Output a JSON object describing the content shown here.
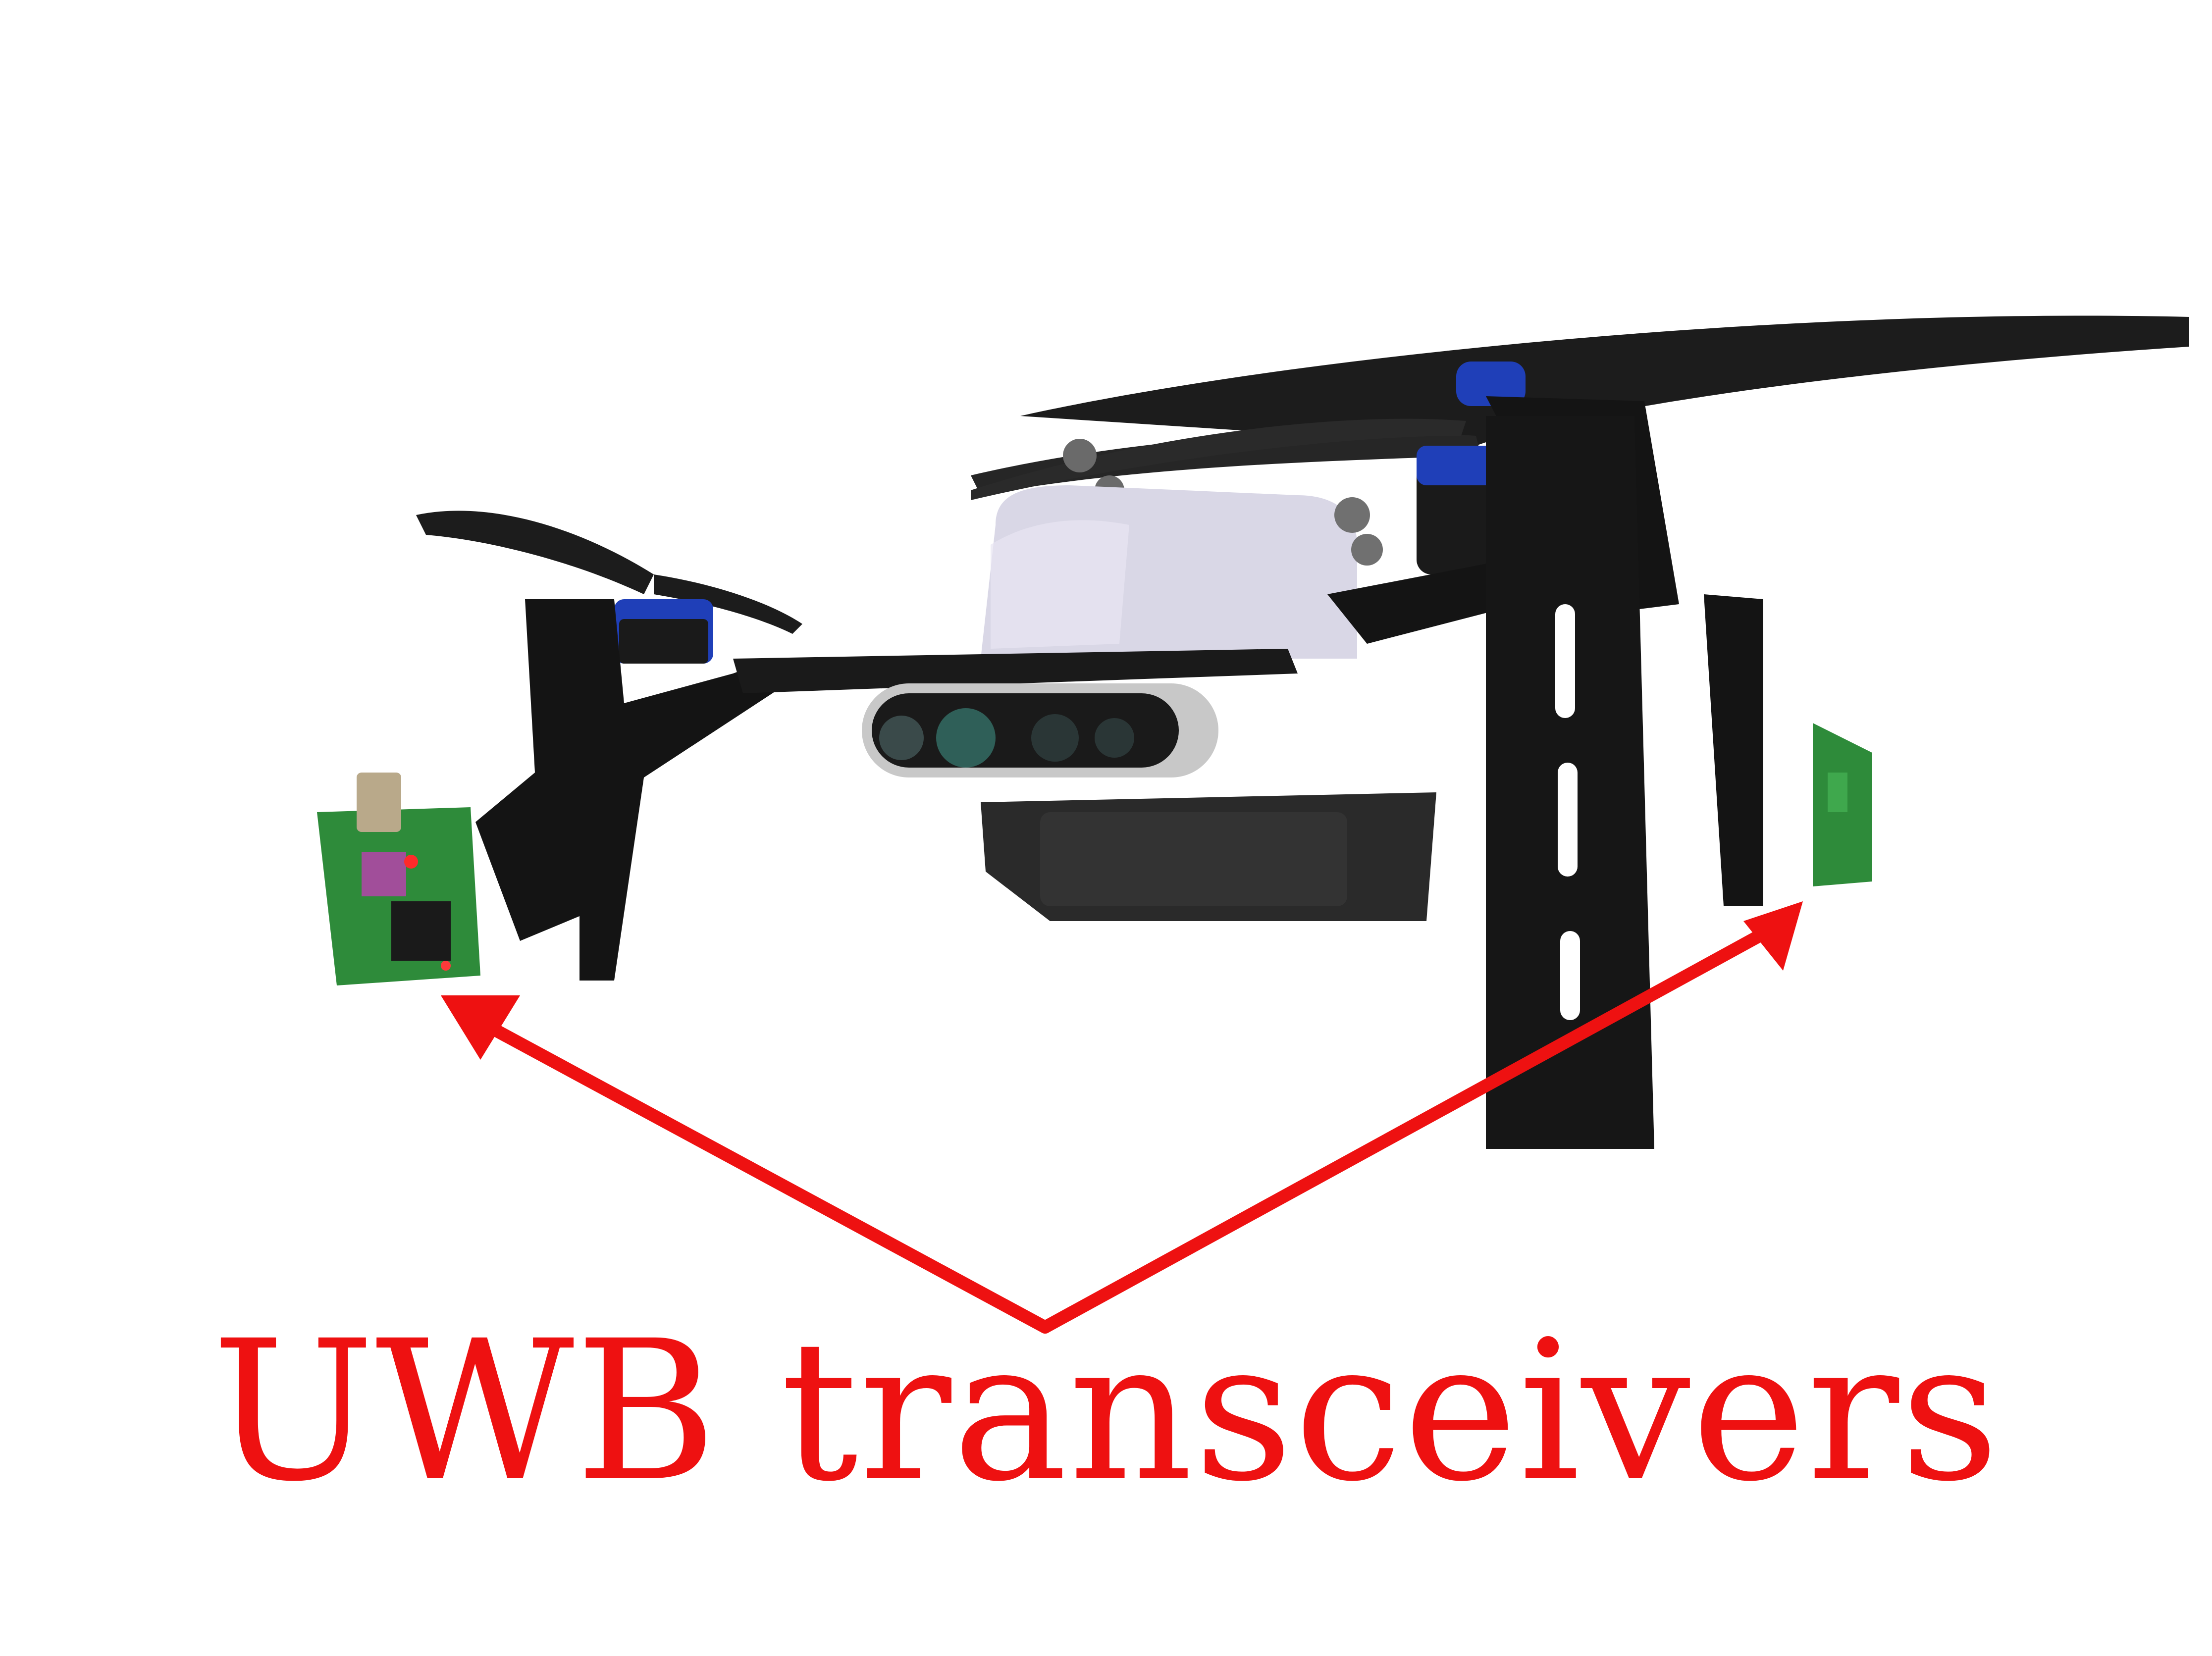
{
  "caption": "UWB transceivers",
  "colors": {
    "background": "#ffffff",
    "annotation": "#ee1111",
    "frame": "#141414",
    "propeller": "#1c1c1c",
    "motor_accent": "#1f3fb8",
    "pcb": "#2e8b3a",
    "camera_body": "#c8c8c8",
    "dome": "#d9d7e6"
  },
  "annotations": [
    {
      "label_ref": "caption",
      "points_to": "left-uwb-transceiver"
    },
    {
      "label_ref": "caption",
      "points_to": "right-uwb-transceiver"
    }
  ]
}
